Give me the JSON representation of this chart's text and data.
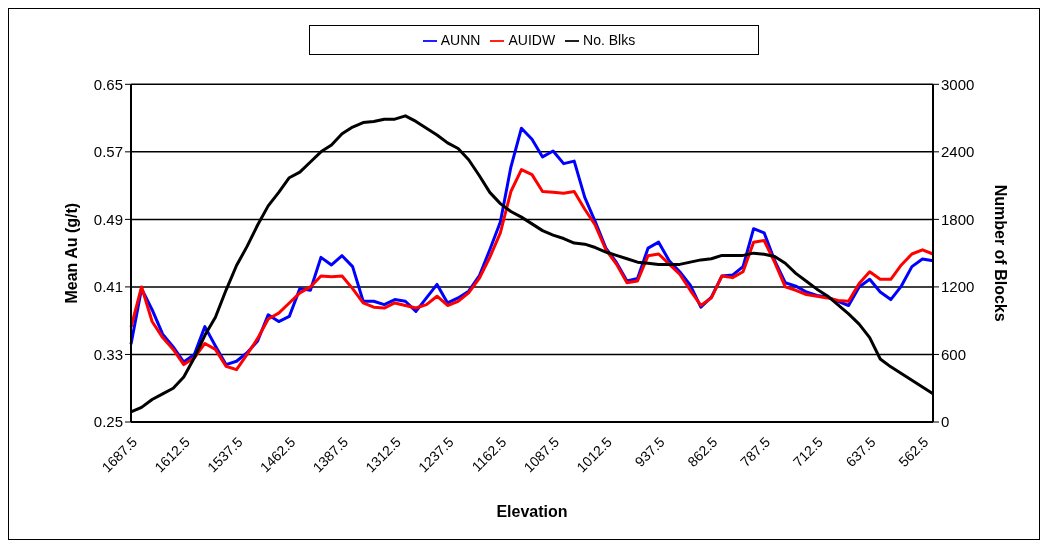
{
  "chart_data": {
    "type": "line",
    "xlabel": "Elevation",
    "ylabel": "Mean Au (g/t)",
    "y2label": "Number of Blocks",
    "categories": [
      "1687.5",
      null,
      null,
      null,
      null,
      "1612.5",
      null,
      null,
      null,
      null,
      "1537.5",
      null,
      null,
      null,
      null,
      "1462.5",
      null,
      null,
      null,
      null,
      "1387.5",
      null,
      null,
      null,
      null,
      "1312.5",
      null,
      null,
      null,
      null,
      "1237.5",
      null,
      null,
      null,
      null,
      "1162.5",
      null,
      null,
      null,
      null,
      "1087.5",
      null,
      null,
      null,
      null,
      "1012.5",
      null,
      null,
      null,
      null,
      "937.5",
      null,
      null,
      null,
      null,
      "862.5",
      null,
      null,
      null,
      null,
      "787.5",
      null,
      null,
      null,
      null,
      "712.5",
      null,
      null,
      null,
      null,
      "637.5",
      null,
      null,
      null,
      null,
      "562.5",
      null
    ],
    "series": [
      {
        "name": "AUNN",
        "color": "#0000ff",
        "values": [
          0.342,
          0.408,
          0.383,
          0.354,
          0.339,
          0.321,
          0.33,
          0.363,
          0.34,
          0.318,
          0.322,
          0.332,
          0.346,
          0.377,
          0.369,
          0.375,
          0.408,
          0.406,
          0.445,
          0.436,
          0.447,
          0.434,
          0.393,
          0.393,
          0.389,
          0.395,
          0.393,
          0.381,
          0.397,
          0.413,
          0.391,
          0.397,
          0.405,
          0.423,
          0.454,
          0.487,
          0.552,
          0.598,
          0.585,
          0.564,
          0.571,
          0.556,
          0.559,
          0.516,
          0.487,
          0.456,
          0.439,
          0.417,
          0.42,
          0.456,
          0.463,
          0.441,
          0.428,
          0.412,
          0.386,
          0.398,
          0.423,
          0.424,
          0.434,
          0.479,
          0.474,
          0.441,
          0.415,
          0.411,
          0.404,
          0.4,
          0.398,
          0.393,
          0.388,
          0.41,
          0.419,
          0.404,
          0.395,
          0.411,
          0.434,
          0.443,
          0.441
        ]
      },
      {
        "name": "AUIDW",
        "color": "#ff0000",
        "values": [
          0.362,
          0.41,
          0.369,
          0.35,
          0.336,
          0.318,
          0.326,
          0.343,
          0.336,
          0.316,
          0.312,
          0.33,
          0.349,
          0.372,
          0.379,
          0.391,
          0.403,
          0.41,
          0.423,
          0.422,
          0.423,
          0.408,
          0.391,
          0.386,
          0.385,
          0.391,
          0.388,
          0.385,
          0.389,
          0.399,
          0.388,
          0.393,
          0.403,
          0.42,
          0.445,
          0.474,
          0.523,
          0.549,
          0.543,
          0.523,
          0.522,
          0.521,
          0.523,
          0.502,
          0.483,
          0.454,
          0.437,
          0.415,
          0.417,
          0.447,
          0.449,
          0.437,
          0.425,
          0.406,
          0.388,
          0.397,
          0.423,
          0.421,
          0.428,
          0.463,
          0.465,
          0.439,
          0.41,
          0.406,
          0.401,
          0.399,
          0.397,
          0.394,
          0.393,
          0.414,
          0.428,
          0.419,
          0.419,
          0.436,
          0.449,
          0.454,
          0.449
        ]
      },
      {
        "name": "No. Blks",
        "color": "#000000",
        "axis": "y2",
        "values": [
          90,
          130,
          200,
          250,
          300,
          400,
          570,
          770,
          930,
          1170,
          1390,
          1560,
          1750,
          1920,
          2040,
          2170,
          2220,
          2310,
          2400,
          2460,
          2560,
          2620,
          2660,
          2670,
          2690,
          2690,
          2720,
          2670,
          2610,
          2550,
          2480,
          2430,
          2330,
          2190,
          2040,
          1940,
          1870,
          1820,
          1760,
          1700,
          1660,
          1630,
          1590,
          1580,
          1550,
          1510,
          1480,
          1450,
          1420,
          1410,
          1400,
          1400,
          1400,
          1420,
          1440,
          1450,
          1480,
          1480,
          1480,
          1500,
          1490,
          1470,
          1410,
          1320,
          1250,
          1180,
          1120,
          1040,
          960,
          870,
          750,
          560,
          490,
          430,
          370,
          310,
          250
        ]
      }
    ],
    "ylim": [
      0.25,
      0.65
    ],
    "yticks": [
      0.25,
      0.33,
      0.41,
      0.49,
      0.57,
      0.65
    ],
    "y2lim": [
      0,
      3000
    ],
    "y2ticks": [
      0,
      600,
      1200,
      1800,
      2400,
      3000
    ],
    "grid": "y",
    "legend": "top"
  }
}
